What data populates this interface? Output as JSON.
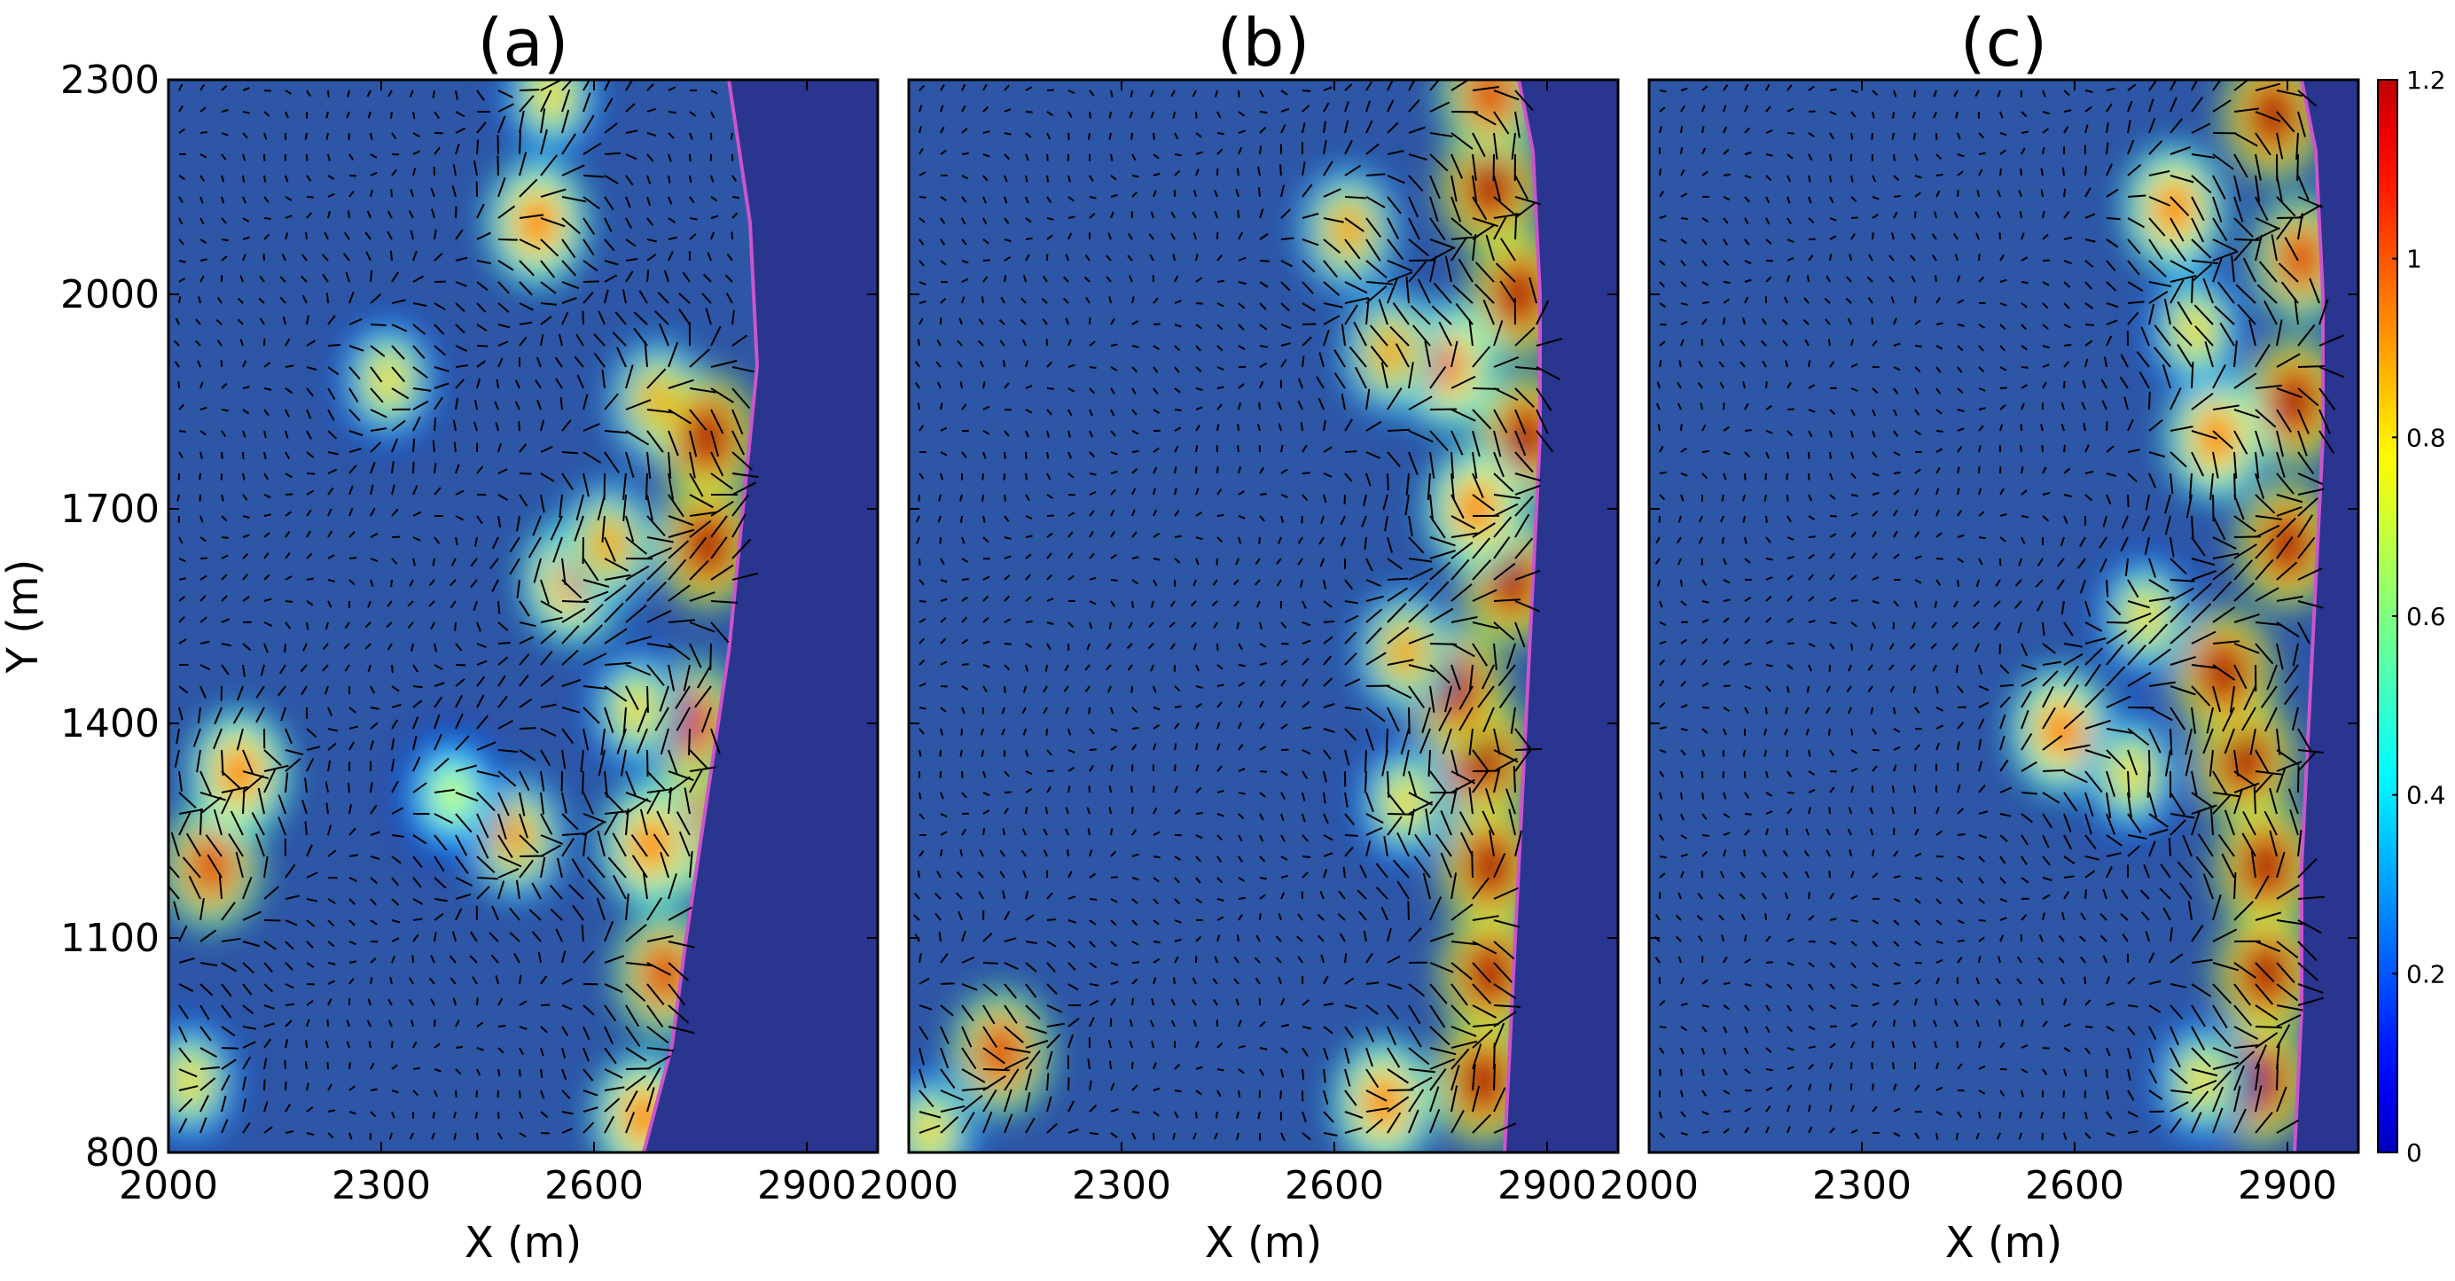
{
  "chart_data": [
    {
      "type": "heatmap",
      "panel": "(a)",
      "title": "(a)",
      "xlabel": "X (m)",
      "ylabel": "Y (m)",
      "xlim": [
        2000,
        3000
      ],
      "ylim": [
        800,
        2300
      ],
      "xticks": [
        2000,
        2300,
        2600,
        2900
      ],
      "yticks": [
        800,
        1100,
        1400,
        1700,
        2000,
        2300
      ],
      "shoreline": [
        [
          2670,
          800
        ],
        [
          2710,
          950
        ],
        [
          2730,
          1100
        ],
        [
          2760,
          1300
        ],
        [
          2790,
          1500
        ],
        [
          2810,
          1700
        ],
        [
          2830,
          1900
        ],
        [
          2820,
          2100
        ],
        [
          2790,
          2300
        ]
      ],
      "hotspots": [
        {
          "x": 2060,
          "y": 1200,
          "value": 1.1
        },
        {
          "x": 2100,
          "y": 1330,
          "value": 1.0
        },
        {
          "x": 2030,
          "y": 900,
          "value": 0.8
        },
        {
          "x": 2520,
          "y": 2100,
          "value": 1.0
        },
        {
          "x": 2540,
          "y": 2280,
          "value": 0.8
        },
        {
          "x": 2570,
          "y": 1600,
          "value": 1.0
        },
        {
          "x": 2620,
          "y": 1650,
          "value": 0.9
        },
        {
          "x": 2690,
          "y": 1850,
          "value": 0.9
        },
        {
          "x": 2760,
          "y": 1800,
          "value": 1.2
        },
        {
          "x": 2760,
          "y": 1650,
          "value": 1.2
        },
        {
          "x": 2740,
          "y": 1400,
          "value": 1.1
        },
        {
          "x": 2730,
          "y": 1250,
          "value": 1.2
        },
        {
          "x": 2680,
          "y": 1230,
          "value": 1.0
        },
        {
          "x": 2700,
          "y": 1050,
          "value": 1.1
        },
        {
          "x": 2670,
          "y": 850,
          "value": 1.0
        },
        {
          "x": 2490,
          "y": 1240,
          "value": 0.9
        },
        {
          "x": 2400,
          "y": 1300,
          "value": 0.7
        },
        {
          "x": 2310,
          "y": 1880,
          "value": 0.8
        },
        {
          "x": 2660,
          "y": 1420,
          "value": 0.8
        }
      ]
    },
    {
      "type": "heatmap",
      "panel": "(b)",
      "title": "(b)",
      "xlabel": "X (m)",
      "ylabel": "",
      "xlim": [
        2000,
        3000
      ],
      "ylim": [
        800,
        2300
      ],
      "xticks": [
        2000,
        2300,
        2600,
        2900
      ],
      "yticks": [
        800,
        1100,
        1400,
        1700,
        2000,
        2300
      ],
      "shoreline": [
        [
          2840,
          800
        ],
        [
          2850,
          1000
        ],
        [
          2860,
          1200
        ],
        [
          2870,
          1400
        ],
        [
          2880,
          1600
        ],
        [
          2890,
          1800
        ],
        [
          2890,
          2000
        ],
        [
          2880,
          2200
        ],
        [
          2860,
          2300
        ]
      ],
      "hotspots": [
        {
          "x": 2810,
          "y": 900,
          "value": 1.2
        },
        {
          "x": 2820,
          "y": 1050,
          "value": 1.2
        },
        {
          "x": 2820,
          "y": 1200,
          "value": 1.2
        },
        {
          "x": 2810,
          "y": 1350,
          "value": 1.2
        },
        {
          "x": 2770,
          "y": 1450,
          "value": 1.2
        },
        {
          "x": 2850,
          "y": 1600,
          "value": 1.2
        },
        {
          "x": 2870,
          "y": 1800,
          "value": 1.2
        },
        {
          "x": 2860,
          "y": 2000,
          "value": 1.2
        },
        {
          "x": 2820,
          "y": 2150,
          "value": 1.2
        },
        {
          "x": 2820,
          "y": 2280,
          "value": 1.1
        },
        {
          "x": 2760,
          "y": 1900,
          "value": 1.0
        },
        {
          "x": 2680,
          "y": 1920,
          "value": 0.9
        },
        {
          "x": 2620,
          "y": 2090,
          "value": 0.9
        },
        {
          "x": 2700,
          "y": 1500,
          "value": 0.9
        },
        {
          "x": 2700,
          "y": 1290,
          "value": 0.8
        },
        {
          "x": 2130,
          "y": 940,
          "value": 1.1
        },
        {
          "x": 2670,
          "y": 870,
          "value": 1.0
        },
        {
          "x": 2030,
          "y": 830,
          "value": 0.8
        },
        {
          "x": 2800,
          "y": 1700,
          "value": 1.0
        }
      ]
    },
    {
      "type": "heatmap",
      "panel": "(c)",
      "title": "(c)",
      "xlabel": "X (m)",
      "ylabel": "",
      "xlim": [
        2000,
        3000
      ],
      "ylim": [
        800,
        2300
      ],
      "xticks": [
        2000,
        2300,
        2600,
        2900
      ],
      "yticks": [
        800,
        1100,
        1400,
        1700,
        2000,
        2300
      ],
      "shoreline": [
        [
          2910,
          800
        ],
        [
          2920,
          1000
        ],
        [
          2920,
          1200
        ],
        [
          2930,
          1400
        ],
        [
          2940,
          1600
        ],
        [
          2950,
          1800
        ],
        [
          2950,
          2000
        ],
        [
          2940,
          2200
        ],
        [
          2920,
          2300
        ]
      ],
      "hotspots": [
        {
          "x": 2860,
          "y": 900,
          "value": 1.2
        },
        {
          "x": 2870,
          "y": 1050,
          "value": 1.2
        },
        {
          "x": 2870,
          "y": 1200,
          "value": 1.2
        },
        {
          "x": 2840,
          "y": 1350,
          "value": 1.2
        },
        {
          "x": 2810,
          "y": 1470,
          "value": 1.2
        },
        {
          "x": 2900,
          "y": 1650,
          "value": 1.2
        },
        {
          "x": 2910,
          "y": 1850,
          "value": 1.2
        },
        {
          "x": 2920,
          "y": 2050,
          "value": 1.1
        },
        {
          "x": 2880,
          "y": 2250,
          "value": 1.2
        },
        {
          "x": 2740,
          "y": 2120,
          "value": 1.0
        },
        {
          "x": 2800,
          "y": 1800,
          "value": 1.0
        },
        {
          "x": 2580,
          "y": 1390,
          "value": 1.0
        },
        {
          "x": 2700,
          "y": 1550,
          "value": 0.8
        },
        {
          "x": 2770,
          "y": 1950,
          "value": 0.8
        },
        {
          "x": 2680,
          "y": 1330,
          "value": 0.8
        },
        {
          "x": 2780,
          "y": 900,
          "value": 0.8
        }
      ]
    }
  ],
  "colorbar": {
    "min": 0,
    "max": 1.2,
    "ticks": [
      "0",
      "0.2",
      "0.4",
      "0.6",
      "0.8",
      "1",
      "1.2"
    ],
    "colormap": "jet"
  },
  "colors": {
    "background_field": "#2e56a6",
    "land": "#2a358f",
    "shoreline": "#cc55cc",
    "arrows": "#000000"
  }
}
